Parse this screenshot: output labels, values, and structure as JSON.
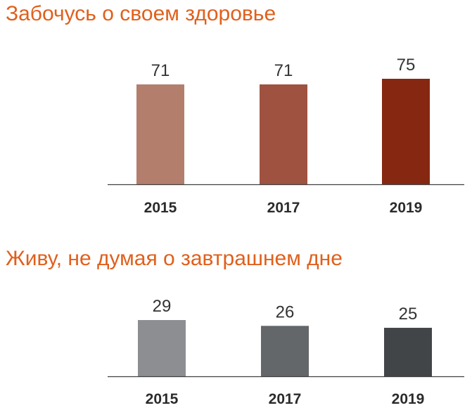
{
  "chart_data": [
    {
      "type": "bar",
      "title": "Забочусь о своем здоровье",
      "categories": [
        "2015",
        "2017",
        "2019"
      ],
      "values": [
        71,
        71,
        75
      ],
      "data_labels": [
        "71",
        "71",
        "75"
      ],
      "bar_colors": [
        "#b47e6c",
        "#9f5240",
        "#862811"
      ],
      "title_color": "#e0601c",
      "xlabel": "",
      "ylabel": "",
      "ylim": [
        0,
        75
      ],
      "grid": false
    },
    {
      "type": "bar",
      "title": "Живу, не думая о завтрашнем дне",
      "categories": [
        "2015",
        "2017",
        "2019"
      ],
      "values": [
        29,
        26,
        25
      ],
      "data_labels": [
        "29",
        "26",
        "25"
      ],
      "bar_colors": [
        "#8c8e91",
        "#646769",
        "#424548"
      ],
      "title_color": "#e0601c",
      "xlabel": "",
      "ylabel": "",
      "ylim": [
        0,
        75
      ],
      "grid": false
    }
  ]
}
